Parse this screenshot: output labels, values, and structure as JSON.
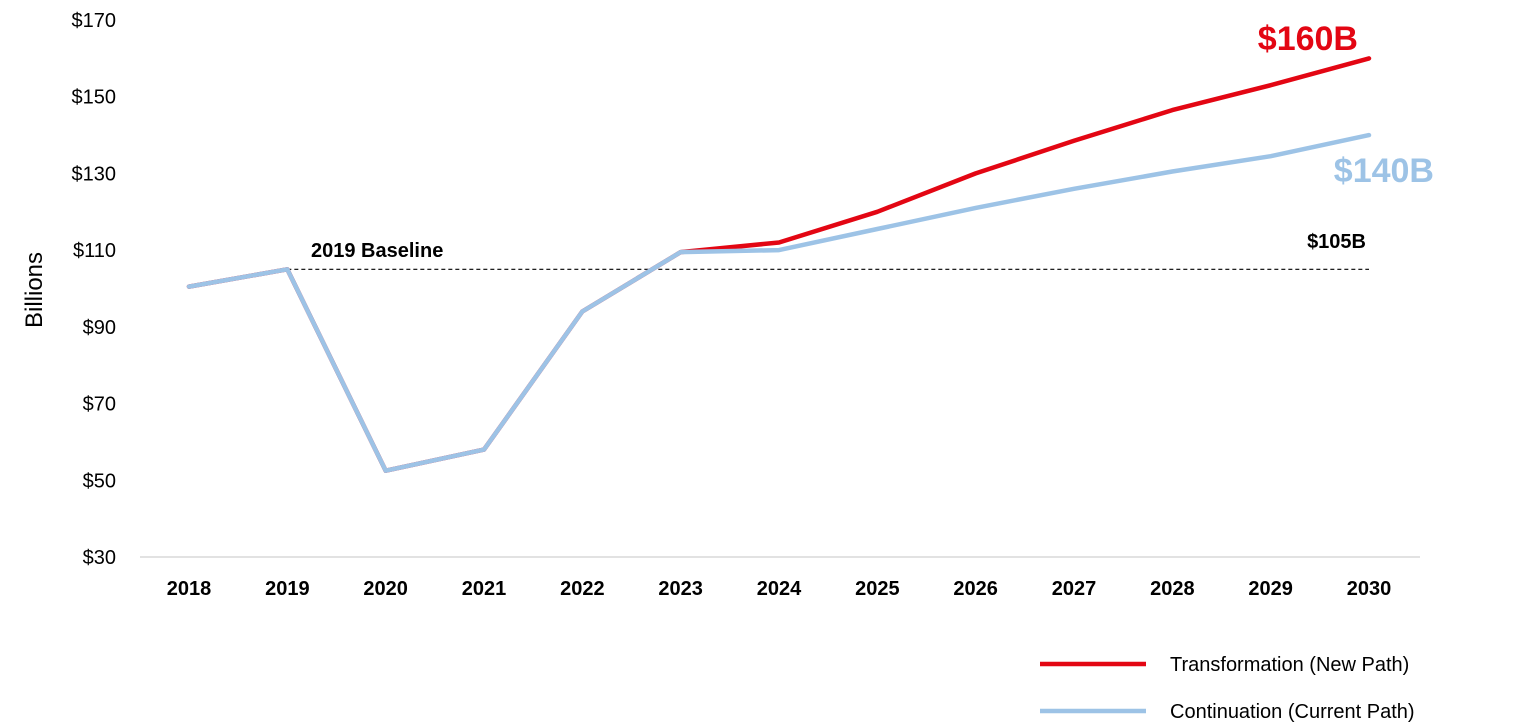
{
  "chart_data": {
    "type": "line",
    "ylabel": "Billions",
    "xlabel": "",
    "title": "",
    "ylim": [
      30,
      170
    ],
    "y_ticks": [
      "$30",
      "$50",
      "$70",
      "$90",
      "$110",
      "$130",
      "$150",
      "$170"
    ],
    "y_tick_values": [
      30,
      50,
      70,
      90,
      110,
      130,
      150,
      170
    ],
    "categories": [
      "2018",
      "2019",
      "2020",
      "2021",
      "2022",
      "2023",
      "2024",
      "2025",
      "2026",
      "2027",
      "2028",
      "2029",
      "2030"
    ],
    "grid": false,
    "legend_position": "bottom-right",
    "series": [
      {
        "name": "Transformation (New Path)",
        "color": "#e30613",
        "values": [
          100.5,
          105,
          52.5,
          58,
          94,
          109.5,
          112,
          120,
          130,
          138.5,
          146.5,
          153,
          160
        ]
      },
      {
        "name": "Continuation (Current Path)",
        "color": "#9dc3e6",
        "values": [
          100.5,
          105,
          52.5,
          58,
          94,
          109.5,
          110,
          115.5,
          121,
          126,
          130.5,
          134.5,
          140
        ]
      }
    ],
    "baseline": {
      "value": 105,
      "label": "2019 Baseline",
      "end_label": "$105B",
      "style": "dashed"
    },
    "annotations": [
      {
        "text": "$160B",
        "color": "#e30613",
        "series": "Transformation (New Path)"
      },
      {
        "text": "$140B",
        "color": "#9dc3e6",
        "series": "Continuation (Current Path)"
      }
    ]
  }
}
